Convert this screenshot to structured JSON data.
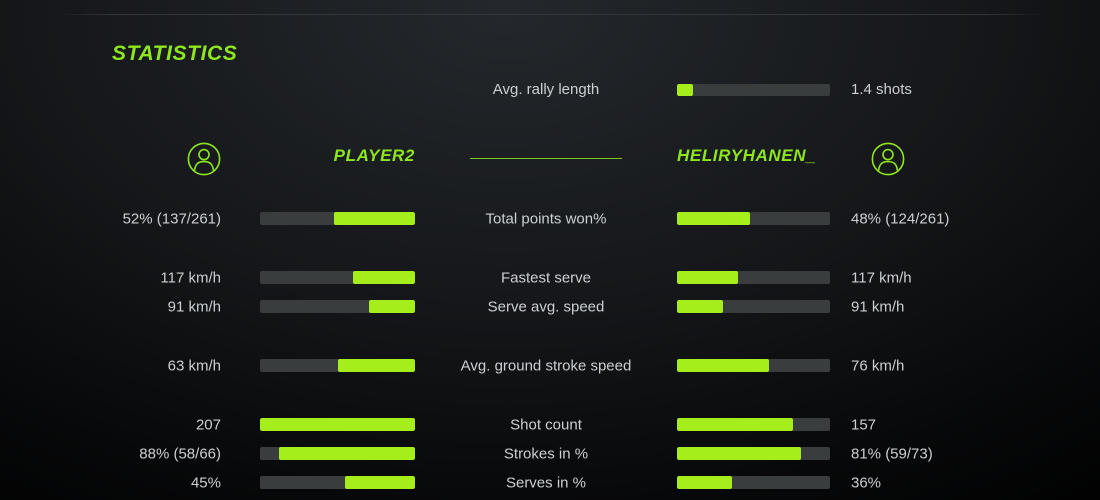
{
  "title": "STATISTICS",
  "colors": {
    "accent_text": "#8ee71e",
    "accent_bar": "#a6ee1b",
    "bar_track": "#3a3d3d",
    "text": "#cbd0d3",
    "divider": "#31363a"
  },
  "players": {
    "left": {
      "name": "PLAYER2"
    },
    "right": {
      "name": "HELIRYHANEN_"
    }
  },
  "top_stat": {
    "label": "Avg. rally length",
    "value": "1.4 shots",
    "fill_pct": 10.5
  },
  "rows": [
    {
      "label": "Total points won%",
      "left_value": "52% (137/261)",
      "left_pct": 52,
      "right_value": "48% (124/261)",
      "right_pct": 48,
      "new_group": false
    },
    {
      "label": "Fastest serve",
      "left_value": "117 km/h",
      "left_pct": 40,
      "right_value": "117 km/h",
      "right_pct": 40,
      "new_group": true
    },
    {
      "label": "Serve avg. speed",
      "left_value": "91 km/h",
      "left_pct": 30,
      "right_value": "91 km/h",
      "right_pct": 30,
      "new_group": false
    },
    {
      "label": "Avg. ground stroke speed",
      "left_value": "63 km/h",
      "left_pct": 50,
      "right_value": "76 km/h",
      "right_pct": 60,
      "new_group": true
    },
    {
      "label": "Shot count",
      "left_value": "207",
      "left_pct": 100,
      "right_value": "157",
      "right_pct": 76,
      "new_group": true
    },
    {
      "label": "Strokes in %",
      "left_value": "88% (58/66)",
      "left_pct": 88,
      "right_value": "81% (59/73)",
      "right_pct": 81,
      "new_group": false
    },
    {
      "label": "Serves in %",
      "left_value": "45%",
      "left_pct": 45,
      "right_value": "36%",
      "right_pct": 36,
      "new_group": false
    }
  ]
}
